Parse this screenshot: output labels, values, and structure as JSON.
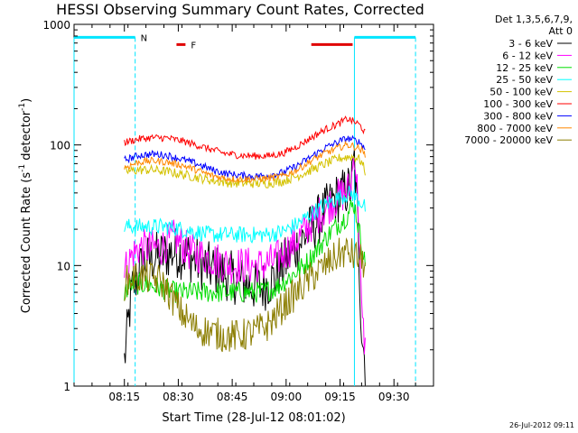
{
  "chart_data": {
    "type": "line",
    "title": "HESSI Observing Summary Count Rates, Corrected",
    "xlabel": "Start Time (28-Jul-12 08:01:02)",
    "ylabel_main": "Corrected Count Rate (s",
    "ylabel_sup1": "-1",
    "ylabel_mid": " detector",
    "ylabel_sup2": "-1",
    "ylabel_end": ")",
    "y_scale": "log",
    "ylim": [
      1,
      1000
    ],
    "xlim_minutes": [
      0,
      100
    ],
    "x_ticks": [
      {
        "t": 14,
        "label": "08:15"
      },
      {
        "t": 29,
        "label": "08:30"
      },
      {
        "t": 44,
        "label": "08:45"
      },
      {
        "t": 59,
        "label": "09:00"
      },
      {
        "t": 74,
        "label": "09:15"
      },
      {
        "t": 89,
        "label": "09:30"
      }
    ],
    "y_ticks": [
      {
        "v": 1,
        "label": "1"
      },
      {
        "v": 10,
        "label": "10"
      },
      {
        "v": 100,
        "label": "100"
      },
      {
        "v": 1000,
        "label": "1000"
      }
    ],
    "legend_header": [
      "Det 1,3,5,6,7,9,",
      "Att 0"
    ],
    "legend_position": "right",
    "footer_timestamp": "26-Jul-2012 09:11",
    "flags": [
      {
        "name": "N",
        "label": "N",
        "color": "#00e5ff",
        "value": 780,
        "segments": [
          [
            0,
            17
          ],
          [
            78,
            95
          ]
        ],
        "vlines": [
          17,
          78,
          95
        ]
      },
      {
        "name": "F",
        "label": "F",
        "color": "#e00000",
        "value": 680,
        "segments": [
          [
            28.5,
            31
          ],
          [
            66,
            77.5
          ]
        ]
      }
    ],
    "series": [
      {
        "name": "3 - 6 keV",
        "color": "#000000",
        "points": [
          [
            14,
            1.6
          ],
          [
            16,
            6
          ],
          [
            18,
            9
          ],
          [
            20,
            11
          ],
          [
            24,
            12
          ],
          [
            28,
            13
          ],
          [
            32,
            12
          ],
          [
            36,
            10
          ],
          [
            40,
            9
          ],
          [
            44,
            8
          ],
          [
            48,
            7
          ],
          [
            52,
            6.5
          ],
          [
            56,
            8
          ],
          [
            60,
            12
          ],
          [
            64,
            17
          ],
          [
            68,
            24
          ],
          [
            72,
            34
          ],
          [
            76,
            42
          ],
          [
            77,
            44
          ],
          [
            78,
            75
          ],
          [
            79,
            20
          ],
          [
            80,
            3
          ],
          [
            81,
            1.5
          ]
        ]
      },
      {
        "name": "6 - 12 keV",
        "color": "#ff00ff",
        "points": [
          [
            14,
            9
          ],
          [
            16,
            12
          ],
          [
            18,
            14
          ],
          [
            20,
            14
          ],
          [
            24,
            14
          ],
          [
            28,
            17
          ],
          [
            32,
            13
          ],
          [
            36,
            12
          ],
          [
            40,
            11
          ],
          [
            44,
            10
          ],
          [
            48,
            10
          ],
          [
            52,
            10
          ],
          [
            56,
            11
          ],
          [
            60,
            14
          ],
          [
            64,
            19
          ],
          [
            68,
            26
          ],
          [
            72,
            34
          ],
          [
            76,
            42
          ],
          [
            77,
            45
          ],
          [
            78,
            90
          ],
          [
            79,
            35
          ],
          [
            80,
            4
          ],
          [
            81,
            2
          ]
        ]
      },
      {
        "name": "12 - 25 keV",
        "color": "#00dd00",
        "points": [
          [
            14,
            6
          ],
          [
            16,
            7
          ],
          [
            18,
            7
          ],
          [
            20,
            7
          ],
          [
            24,
            6.5
          ],
          [
            28,
            6
          ],
          [
            32,
            6
          ],
          [
            36,
            6
          ],
          [
            40,
            6
          ],
          [
            44,
            6
          ],
          [
            48,
            6
          ],
          [
            52,
            6
          ],
          [
            56,
            6.5
          ],
          [
            60,
            8
          ],
          [
            64,
            10
          ],
          [
            68,
            14
          ],
          [
            72,
            20
          ],
          [
            76,
            26
          ],
          [
            77,
            30
          ],
          [
            78,
            32
          ],
          [
            79,
            22
          ],
          [
            80,
            15
          ],
          [
            81,
            10
          ]
        ]
      },
      {
        "name": "25 - 50 keV",
        "color": "#00ffff",
        "points": [
          [
            14,
            21
          ],
          [
            18,
            21
          ],
          [
            22,
            21
          ],
          [
            26,
            21
          ],
          [
            30,
            20
          ],
          [
            34,
            19
          ],
          [
            38,
            18
          ],
          [
            42,
            18
          ],
          [
            46,
            18
          ],
          [
            50,
            18
          ],
          [
            54,
            18
          ],
          [
            58,
            19
          ],
          [
            62,
            22
          ],
          [
            66,
            27
          ],
          [
            70,
            32
          ],
          [
            74,
            37
          ],
          [
            77,
            40
          ],
          [
            78,
            38
          ],
          [
            80,
            33
          ],
          [
            81,
            30
          ]
        ]
      },
      {
        "name": "50 - 100 keV",
        "color": "#d4c200",
        "points": [
          [
            14,
            60
          ],
          [
            18,
            62
          ],
          [
            22,
            62
          ],
          [
            26,
            60
          ],
          [
            30,
            57
          ],
          [
            34,
            54
          ],
          [
            38,
            51
          ],
          [
            42,
            49
          ],
          [
            46,
            48
          ],
          [
            50,
            48
          ],
          [
            54,
            48
          ],
          [
            58,
            50
          ],
          [
            62,
            55
          ],
          [
            66,
            62
          ],
          [
            70,
            70
          ],
          [
            74,
            78
          ],
          [
            77,
            80
          ],
          [
            79,
            78
          ],
          [
            80,
            72
          ],
          [
            81,
            60
          ]
        ]
      },
      {
        "name": "100 - 300 keV",
        "color": "#ff0000",
        "points": [
          [
            14,
            105
          ],
          [
            18,
            112
          ],
          [
            22,
            115
          ],
          [
            26,
            114
          ],
          [
            30,
            108
          ],
          [
            34,
            100
          ],
          [
            38,
            92
          ],
          [
            42,
            85
          ],
          [
            46,
            82
          ],
          [
            50,
            81
          ],
          [
            54,
            81
          ],
          [
            58,
            85
          ],
          [
            62,
            97
          ],
          [
            66,
            115
          ],
          [
            70,
            135
          ],
          [
            74,
            152
          ],
          [
            76,
            165
          ],
          [
            77,
            160
          ],
          [
            79,
            150
          ],
          [
            80,
            140
          ],
          [
            81,
            125
          ]
        ]
      },
      {
        "name": "300 - 800 keV",
        "color": "#0000ff",
        "points": [
          [
            14,
            75
          ],
          [
            18,
            82
          ],
          [
            22,
            84
          ],
          [
            26,
            82
          ],
          [
            30,
            76
          ],
          [
            34,
            70
          ],
          [
            38,
            63
          ],
          [
            42,
            58
          ],
          [
            46,
            56
          ],
          [
            50,
            55
          ],
          [
            54,
            56
          ],
          [
            58,
            59
          ],
          [
            62,
            67
          ],
          [
            66,
            80
          ],
          [
            70,
            95
          ],
          [
            74,
            108
          ],
          [
            76,
            113
          ],
          [
            77,
            112
          ],
          [
            79,
            107
          ],
          [
            80,
            102
          ],
          [
            81,
            92
          ]
        ]
      },
      {
        "name": "800 - 7000 keV",
        "color": "#ff8800",
        "points": [
          [
            14,
            65
          ],
          [
            18,
            72
          ],
          [
            22,
            74
          ],
          [
            26,
            72
          ],
          [
            30,
            68
          ],
          [
            34,
            62
          ],
          [
            38,
            56
          ],
          [
            42,
            53
          ],
          [
            46,
            52
          ],
          [
            50,
            52
          ],
          [
            54,
            53
          ],
          [
            58,
            55
          ],
          [
            62,
            62
          ],
          [
            66,
            74
          ],
          [
            70,
            86
          ],
          [
            74,
            96
          ],
          [
            76,
            100
          ],
          [
            77,
            99
          ],
          [
            79,
            95
          ],
          [
            80,
            90
          ],
          [
            81,
            82
          ]
        ]
      },
      {
        "name": "7000 - 20000 keV",
        "color": "#8b7d00",
        "points": [
          [
            14,
            7
          ],
          [
            16,
            8
          ],
          [
            18,
            8
          ],
          [
            20,
            8
          ],
          [
            24,
            7.5
          ],
          [
            28,
            5
          ],
          [
            30,
            4
          ],
          [
            34,
            3
          ],
          [
            38,
            2.8
          ],
          [
            42,
            2.6
          ],
          [
            46,
            2.6
          ],
          [
            50,
            2.8
          ],
          [
            54,
            3.2
          ],
          [
            58,
            4.5
          ],
          [
            62,
            6
          ],
          [
            66,
            8
          ],
          [
            70,
            10
          ],
          [
            74,
            12.5
          ],
          [
            76,
            13
          ],
          [
            78,
            12
          ],
          [
            79,
            11.5
          ],
          [
            80,
            11
          ],
          [
            81,
            10
          ]
        ]
      }
    ]
  }
}
